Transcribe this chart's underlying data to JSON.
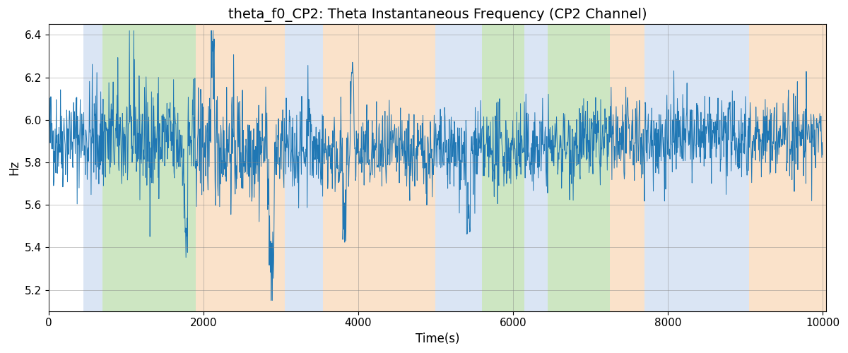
{
  "title": "theta_f0_CP2: Theta Instantaneous Frequency (CP2 Channel)",
  "xlabel": "Time(s)",
  "ylabel": "Hz",
  "xlim": [
    0,
    10050
  ],
  "ylim": [
    5.1,
    6.45
  ],
  "line_color": "#1f77b4",
  "line_width": 0.7,
  "grid": true,
  "background_regions": [
    {
      "xmin": 450,
      "xmax": 700,
      "color": "#aec6e8",
      "alpha": 0.45
    },
    {
      "xmin": 700,
      "xmax": 1900,
      "color": "#90c878",
      "alpha": 0.45
    },
    {
      "xmin": 1900,
      "xmax": 3050,
      "color": "#f5c08a",
      "alpha": 0.45
    },
    {
      "xmin": 3050,
      "xmax": 3550,
      "color": "#aec6e8",
      "alpha": 0.45
    },
    {
      "xmin": 3550,
      "xmax": 5000,
      "color": "#f5c08a",
      "alpha": 0.45
    },
    {
      "xmin": 5000,
      "xmax": 5600,
      "color": "#aec6e8",
      "alpha": 0.45
    },
    {
      "xmin": 5600,
      "xmax": 6150,
      "color": "#90c878",
      "alpha": 0.45
    },
    {
      "xmin": 6150,
      "xmax": 6450,
      "color": "#aec6e8",
      "alpha": 0.45
    },
    {
      "xmin": 6450,
      "xmax": 7250,
      "color": "#90c878",
      "alpha": 0.45
    },
    {
      "xmin": 7250,
      "xmax": 7700,
      "color": "#f5c08a",
      "alpha": 0.45
    },
    {
      "xmin": 7700,
      "xmax": 9050,
      "color": "#aec6e8",
      "alpha": 0.45
    },
    {
      "xmin": 9050,
      "xmax": 10050,
      "color": "#f5c08a",
      "alpha": 0.45
    }
  ],
  "seed": 42,
  "n_points": 2000,
  "title_fontsize": 14,
  "label_fontsize": 12,
  "tick_fontsize": 11,
  "yticks": [
    5.2,
    5.4,
    5.6,
    5.8,
    6.0,
    6.2,
    6.4
  ],
  "xticks": [
    0,
    2000,
    4000,
    6000,
    8000,
    10000
  ]
}
